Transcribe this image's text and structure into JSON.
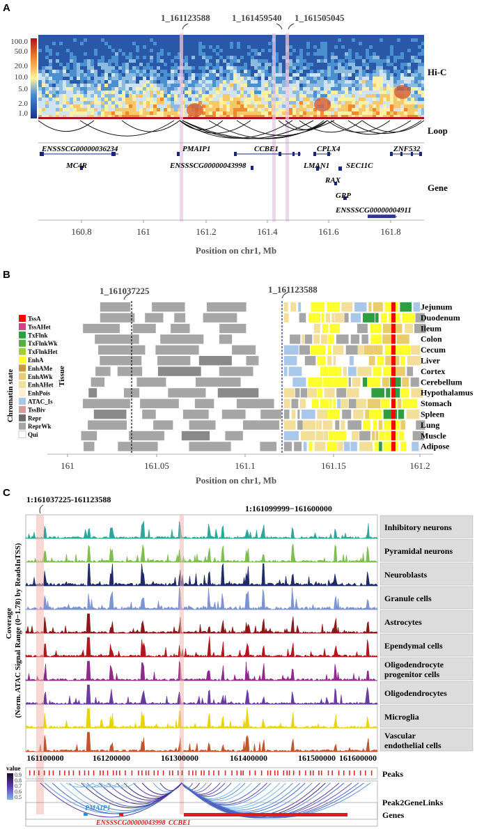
{
  "panelA": {
    "letter": "A",
    "highlights": [
      "1_161123588",
      "1_161459540",
      "1_161505045"
    ],
    "colorbar_ticks": [
      "100.0",
      "50.0",
      "20.0",
      "10.0",
      "5.0",
      "2.0",
      "1.0"
    ],
    "tracks": [
      "Hi-C",
      "Loop",
      "Gene"
    ],
    "genes": [
      "ENSSSCG00000036234",
      "PMAIP1",
      "CCBE1",
      "CPLX4",
      "ZNF532",
      "MC4R",
      "ENSSSCG00000043998",
      "LMAN1",
      "SEC11C",
      "RAX",
      "GRP",
      "ENSSSCG00000004911"
    ],
    "xticks": [
      "160.8",
      "161",
      "161.2",
      "161.4",
      "161.6",
      "161.8"
    ],
    "xlabel": "Position on chr1, Mb",
    "colors": {
      "hic_high": "#c8102e",
      "hic_low": "#3a6fb0",
      "highlight": "#e7c9e3",
      "gene": "#1a237e"
    }
  },
  "panelB": {
    "letter": "B",
    "highlights": [
      "1_161037225",
      "1_161123588"
    ],
    "legend_title": "Chromatin state",
    "legend": [
      {
        "label": "TssA",
        "color": "#ff0000"
      },
      {
        "label": "TssAHet",
        "color": "#d0448a"
      },
      {
        "label": "TxFlnk",
        "color": "#2e9e3e"
      },
      {
        "label": "TxFlnkWk",
        "color": "#55b043"
      },
      {
        "label": "TxFlnkHet",
        "color": "#a6cc3a"
      },
      {
        "label": "EnhA",
        "color": "#ffff2e"
      },
      {
        "label": "EnhAMe",
        "color": "#c79a3b"
      },
      {
        "label": "EnhAWk",
        "color": "#e8cc6e"
      },
      {
        "label": "EnhAHet",
        "color": "#f3df9a"
      },
      {
        "label": "EnhPois",
        "color": "#fbf0cf"
      },
      {
        "label": "ATAC_Is",
        "color": "#a9c7e8"
      },
      {
        "label": "TssBiv",
        "color": "#d69a9a"
      },
      {
        "label": "Repr",
        "color": "#6c6c6c"
      },
      {
        "label": "ReprWk",
        "color": "#a6a6a6"
      },
      {
        "label": "Qui",
        "color": "#ffffff"
      }
    ],
    "tissue_label": "Tissue",
    "tissues": [
      "Jejunum",
      "Duodenum",
      "Ileum",
      "Colon",
      "Cecum",
      "Liver",
      "Cortex",
      "Cerebellum",
      "Hypothalamus",
      "Stomach",
      "Spleen",
      "Lung",
      "Muscle",
      "Adipose"
    ],
    "xticks": [
      "161",
      "161.05",
      "161.1",
      "161.15",
      "161.2"
    ],
    "xlabel": "Position on chr1, Mb"
  },
  "panelC": {
    "letter": "C",
    "region_label": "1:161037225-161123588",
    "range_label": "1:161099999−161600000",
    "ylabel_line1": "Coverage",
    "ylabel_line2": "(Norm. ATAC Signal Range (0−1.78) by ReadsInTSS)",
    "tracks": [
      {
        "label": "Inhibitory neurons",
        "color": "#2fa59a"
      },
      {
        "label": "Pyramidal neurons",
        "color": "#7cbf4f"
      },
      {
        "label": "Neuroblasts",
        "color": "#1f2a6b"
      },
      {
        "label": "Granule cells",
        "color": "#7d93d3"
      },
      {
        "label": "Astrocytes",
        "color": "#8a1a1a"
      },
      {
        "label": "Ependymal cells",
        "color": "#b3161d"
      },
      {
        "label": "Oligodendrocyte progenitor cells",
        "color": "#8e2a8a"
      },
      {
        "label": "Oligodendrocytes",
        "color": "#6b3ba1"
      },
      {
        "label": "Microglia",
        "color": "#e8d400"
      },
      {
        "label": "Vascular endothelial cells",
        "color": "#c4552a"
      }
    ],
    "xticks": [
      "161100000",
      "161200000",
      "161300000",
      "161400000",
      "161500000",
      "161600000"
    ],
    "peaks_label": "Peaks",
    "links_label": "Peak2GeneLinks",
    "genes_label": "Genes",
    "value_legend_title": "value",
    "value_ticks": [
      "0.9",
      "0.8",
      "0.7",
      "0.6",
      "0.5"
    ],
    "genes": [
      {
        "name": "PMAIP1",
        "color": "#2f8fd8"
      },
      {
        "name": "ENSSSCG00000043998",
        "color": "#e01b1b"
      },
      {
        "name": "CCBE1",
        "color": "#e01b1b"
      }
    ]
  }
}
